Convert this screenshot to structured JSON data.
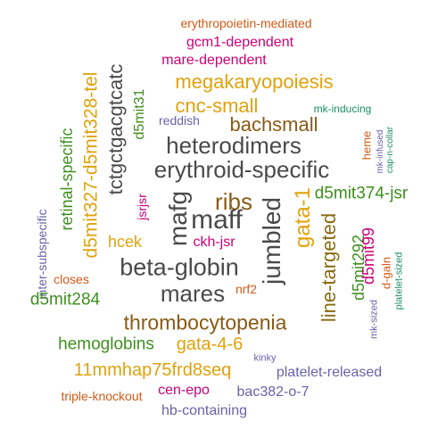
{
  "colors": {
    "gray": "#4a4a4a",
    "brown": "#8a5a14",
    "olive": "#8a6a10",
    "green": "#3f8f1f",
    "gold": "#e0a20c",
    "magenta": "#cc0077",
    "orange": "#d25a16",
    "purple": "#6a62a8",
    "teal": "#1a8c68"
  },
  "words": [
    {
      "text": "erythropoietin-mediated",
      "color": "orange"
    },
    {
      "text": "gcm1-dependent",
      "color": "magenta"
    },
    {
      "text": "mare-dependent",
      "color": "magenta"
    },
    {
      "text": "megakaryopoiesis",
      "color": "gold"
    },
    {
      "text": "d5mit327-d5mit328-tel",
      "color": "gold"
    },
    {
      "text": "tctgctgacgtcatc",
      "color": "gray"
    },
    {
      "text": "d5mit31",
      "color": "green"
    },
    {
      "text": "cnc-small",
      "color": "gold"
    },
    {
      "text": "reddish",
      "color": "purple"
    },
    {
      "text": "mk-inducing",
      "color": "teal"
    },
    {
      "text": "bachsmall",
      "color": "brown"
    },
    {
      "text": "heme",
      "color": "orange"
    },
    {
      "text": "mk-infused",
      "color": "purple"
    },
    {
      "text": "cap-n-collar",
      "color": "teal"
    },
    {
      "text": "heterodimers",
      "color": "gray"
    },
    {
      "text": "erythroid-specific",
      "color": "gray"
    },
    {
      "text": "retinal-specific",
      "color": "green"
    },
    {
      "text": "d5mit374-jsr",
      "color": "green"
    },
    {
      "text": "jsrjsr",
      "color": "magenta"
    },
    {
      "text": "mafg",
      "color": "gray"
    },
    {
      "text": "ribs",
      "color": "brown"
    },
    {
      "text": "maff",
      "color": "gray"
    },
    {
      "text": "gata-1",
      "color": "gold"
    },
    {
      "text": "jumbled",
      "color": "gray"
    },
    {
      "text": "inter-subspecific",
      "color": "purple"
    },
    {
      "text": "hcek",
      "color": "gold"
    },
    {
      "text": "ckh-jsr",
      "color": "magenta"
    },
    {
      "text": "line-targeted",
      "color": "olive"
    },
    {
      "text": "d5mit292",
      "color": "green"
    },
    {
      "text": "d5mit99",
      "color": "magenta"
    },
    {
      "text": "d-galn",
      "color": "orange"
    },
    {
      "text": "platelet-sized",
      "color": "teal"
    },
    {
      "text": "beta-globin",
      "color": "gray"
    },
    {
      "text": "closes",
      "color": "orange"
    },
    {
      "text": "d5mit284",
      "color": "green"
    },
    {
      "text": "nrf2",
      "color": "orange"
    },
    {
      "text": "mares",
      "color": "gray"
    },
    {
      "text": "mk-sized",
      "color": "purple"
    },
    {
      "text": "thrombocytopenia",
      "color": "brown"
    },
    {
      "text": "hemoglobins",
      "color": "green"
    },
    {
      "text": "gata-4-6",
      "color": "gold"
    },
    {
      "text": "kinky",
      "color": "purple"
    },
    {
      "text": "11mmhap75frd8seq",
      "color": "gold"
    },
    {
      "text": "platelet-released",
      "color": "purple"
    },
    {
      "text": "cen-epo",
      "color": "magenta"
    },
    {
      "text": "triple-knockout",
      "color": "orange"
    },
    {
      "text": "bac382-o-7",
      "color": "purple"
    },
    {
      "text": "hb-containing",
      "color": "purple"
    }
  ]
}
